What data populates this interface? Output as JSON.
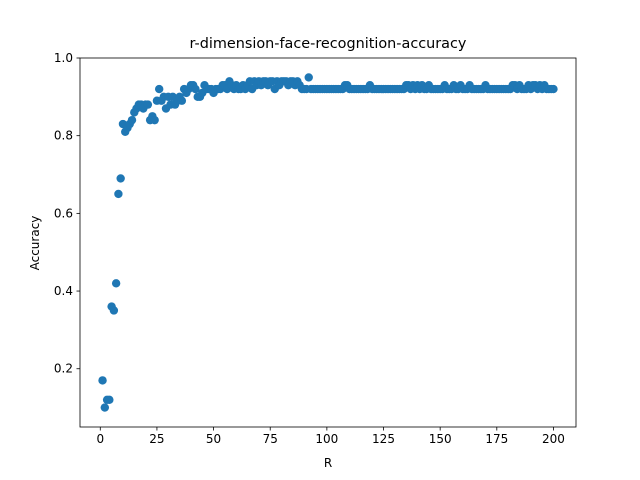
{
  "chart_data": {
    "type": "scatter",
    "title": "r-dimension-face-recognition-accuracy",
    "x_label": "R",
    "y_label": "Accuracy",
    "color": "#1f77b4",
    "xlim": [
      -8.95,
      209.95
    ],
    "xticks": [
      0,
      25,
      50,
      75,
      100,
      125,
      150,
      175,
      200
    ],
    "ylim": [
      0.05,
      1.0
    ],
    "yticks": [
      0.2,
      0.4,
      0.6,
      0.8,
      {
        "value": 1,
        "label": "1.0"
      }
    ],
    "x": [
      1,
      2,
      3,
      4,
      5,
      6,
      7,
      8,
      9,
      10,
      11,
      12,
      13,
      14,
      15,
      16,
      17,
      18,
      19,
      20,
      21,
      22,
      23,
      24,
      25,
      26,
      27,
      28,
      29,
      30,
      31,
      32,
      33,
      34,
      35,
      36,
      37,
      38,
      39,
      40,
      41,
      42,
      43,
      44,
      45,
      46,
      47,
      48,
      49,
      50,
      51,
      52,
      53,
      54,
      55,
      56,
      57,
      58,
      59,
      60,
      61,
      62,
      63,
      64,
      65,
      66,
      67,
      68,
      69,
      70,
      71,
      72,
      73,
      74,
      75,
      76,
      77,
      78,
      79,
      80,
      81,
      82,
      83,
      84,
      85,
      86,
      87,
      88,
      89,
      90,
      91,
      92,
      93,
      94,
      95,
      96,
      97,
      98,
      99,
      100,
      101,
      102,
      103,
      104,
      105,
      106,
      107,
      108,
      109,
      110,
      111,
      112,
      113,
      114,
      115,
      116,
      117,
      118,
      119,
      120,
      121,
      122,
      123,
      124,
      125,
      126,
      127,
      128,
      129,
      130,
      131,
      132,
      133,
      134,
      135,
      136,
      137,
      138,
      139,
      140,
      141,
      142,
      143,
      144,
      145,
      146,
      147,
      148,
      149,
      150,
      151,
      152,
      153,
      154,
      155,
      156,
      157,
      158,
      159,
      160,
      161,
      162,
      163,
      164,
      165,
      166,
      167,
      168,
      169,
      170,
      171,
      172,
      173,
      174,
      175,
      176,
      177,
      178,
      179,
      180,
      181,
      182,
      183,
      184,
      185,
      186,
      187,
      188,
      189,
      190,
      191,
      192,
      193,
      194,
      195,
      196,
      197,
      198,
      199,
      200
    ],
    "values": [
      0.17,
      0.1,
      0.12,
      0.12,
      0.36,
      0.35,
      0.42,
      0.65,
      0.69,
      0.83,
      0.81,
      0.82,
      0.83,
      0.84,
      0.86,
      0.87,
      0.88,
      0.88,
      0.87,
      0.88,
      0.88,
      0.84,
      0.85,
      0.84,
      0.89,
      0.92,
      0.89,
      0.9,
      0.87,
      0.9,
      0.88,
      0.9,
      0.88,
      0.89,
      0.9,
      0.89,
      0.92,
      0.91,
      0.92,
      0.93,
      0.93,
      0.92,
      0.9,
      0.9,
      0.91,
      0.93,
      0.92,
      0.92,
      0.92,
      0.91,
      0.92,
      0.92,
      0.92,
      0.93,
      0.93,
      0.92,
      0.94,
      0.93,
      0.92,
      0.93,
      0.92,
      0.92,
      0.93,
      0.92,
      0.93,
      0.94,
      0.92,
      0.94,
      0.93,
      0.94,
      0.93,
      0.94,
      0.94,
      0.93,
      0.94,
      0.94,
      0.92,
      0.94,
      0.93,
      0.94,
      0.94,
      0.94,
      0.93,
      0.94,
      0.94,
      0.93,
      0.94,
      0.93,
      0.92,
      0.92,
      0.92,
      0.95,
      0.92,
      0.92,
      0.92,
      0.92,
      0.92,
      0.92,
      0.92,
      0.92,
      0.92,
      0.92,
      0.92,
      0.92,
      0.92,
      0.92,
      0.92,
      0.93,
      0.93,
      0.92,
      0.92,
      0.92,
      0.92,
      0.92,
      0.92,
      0.92,
      0.92,
      0.92,
      0.93,
      0.92,
      0.92,
      0.92,
      0.92,
      0.92,
      0.92,
      0.92,
      0.92,
      0.92,
      0.92,
      0.92,
      0.92,
      0.92,
      0.92,
      0.92,
      0.93,
      0.93,
      0.92,
      0.93,
      0.92,
      0.93,
      0.92,
      0.93,
      0.92,
      0.92,
      0.93,
      0.92,
      0.92,
      0.92,
      0.92,
      0.92,
      0.92,
      0.93,
      0.92,
      0.92,
      0.92,
      0.93,
      0.92,
      0.92,
      0.93,
      0.92,
      0.92,
      0.92,
      0.93,
      0.92,
      0.92,
      0.92,
      0.92,
      0.92,
      0.92,
      0.93,
      0.92,
      0.92,
      0.92,
      0.92,
      0.92,
      0.92,
      0.92,
      0.92,
      0.92,
      0.92,
      0.92,
      0.93,
      0.93,
      0.92,
      0.93,
      0.92,
      0.92,
      0.92,
      0.93,
      0.92,
      0.93,
      0.93,
      0.92,
      0.93,
      0.92,
      0.93,
      0.92,
      0.92,
      0.92,
      0.92
    ]
  }
}
